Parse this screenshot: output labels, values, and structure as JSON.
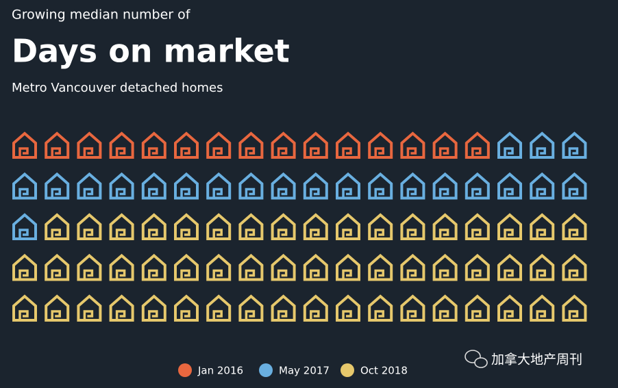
{
  "chart_data": {
    "type": "pictogram",
    "subtitle_top": "Growing median number of",
    "title": "Days on market",
    "subtitle": "Metro Vancouver detached homes",
    "series": [
      {
        "name": "Jan 2016",
        "color": "#e8673f",
        "value": 15
      },
      {
        "name": "May 2017",
        "color": "#69afe0",
        "value": 22
      },
      {
        "name": "Oct 2018",
        "color": "#e6c86c",
        "value": 53
      }
    ],
    "watermark": "加拿大地产周刊"
  }
}
